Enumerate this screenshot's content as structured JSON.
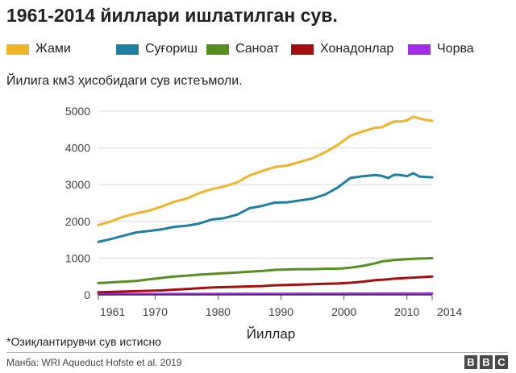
{
  "title": "1961-2014 йиллари ишлатилган сув.",
  "subtitle": "Йилига км3 ҳисобидаги сув истеъмоли.",
  "footnote": "*Озиқлантирувчи сув истисно",
  "source": "Манба: WRI Aqueduct Hofste et al. 2019",
  "brand": [
    "B",
    "B",
    "C"
  ],
  "chart_data": {
    "type": "line",
    "title": "1961-2014 йиллари ишлатилган сув.",
    "xlabel": "Йиллар",
    "ylabel": "Йилига км3 ҳисобидаги сув истеъмоли.",
    "xlim": [
      1961,
      2014
    ],
    "ylim": [
      0,
      5000
    ],
    "x_ticks": [
      1961,
      1970,
      1980,
      1990,
      2000,
      2010,
      2014
    ],
    "y_ticks": [
      0,
      1000,
      2000,
      3000,
      4000,
      5000
    ],
    "grid": true,
    "legend_position": "top",
    "x": [
      1961,
      1963,
      1965,
      1967,
      1969,
      1971,
      1973,
      1975,
      1977,
      1979,
      1981,
      1983,
      1985,
      1987,
      1989,
      1991,
      1993,
      1995,
      1997,
      1999,
      2001,
      2003,
      2005,
      2006,
      2007,
      2008,
      2009,
      2010,
      2011,
      2012,
      2013,
      2014
    ],
    "series": [
      {
        "name": "Жами",
        "color": "#f0b429",
        "values": [
          1900,
          2000,
          2130,
          2220,
          2290,
          2400,
          2530,
          2620,
          2770,
          2880,
          2950,
          3060,
          3250,
          3370,
          3480,
          3520,
          3620,
          3720,
          3880,
          4080,
          4330,
          4450,
          4550,
          4560,
          4650,
          4720,
          4720,
          4750,
          4850,
          4800,
          4760,
          4740
        ]
      },
      {
        "name": "Суғориш",
        "color": "#1d7fa3",
        "values": [
          1440,
          1520,
          1610,
          1700,
          1740,
          1780,
          1850,
          1880,
          1940,
          2050,
          2090,
          2180,
          2360,
          2420,
          2510,
          2520,
          2570,
          2620,
          2730,
          2920,
          3180,
          3230,
          3260,
          3240,
          3180,
          3270,
          3260,
          3230,
          3310,
          3220,
          3210,
          3200
        ]
      },
      {
        "name": "Саноат",
        "color": "#55901f",
        "values": [
          320,
          340,
          360,
          380,
          420,
          460,
          500,
          520,
          550,
          570,
          590,
          610,
          630,
          650,
          680,
          690,
          700,
          700,
          710,
          710,
          740,
          790,
          860,
          910,
          930,
          950,
          960,
          970,
          980,
          990,
          990,
          1000
        ]
      },
      {
        "name": "Хонадонлар",
        "color": "#a30f0f",
        "values": [
          70,
          80,
          90,
          100,
          110,
          120,
          140,
          160,
          180,
          200,
          210,
          220,
          230,
          240,
          260,
          270,
          280,
          290,
          300,
          310,
          330,
          360,
          400,
          410,
          420,
          440,
          450,
          460,
          470,
          480,
          490,
          500
        ]
      },
      {
        "name": "Чорва",
        "color": "#a42be8",
        "values": [
          20,
          20,
          21,
          22,
          22,
          23,
          24,
          24,
          25,
          25,
          26,
          27,
          27,
          28,
          28,
          29,
          30,
          30,
          31,
          31,
          32,
          33,
          34,
          34,
          35,
          35,
          35,
          36,
          36,
          36,
          37,
          37
        ]
      }
    ]
  }
}
